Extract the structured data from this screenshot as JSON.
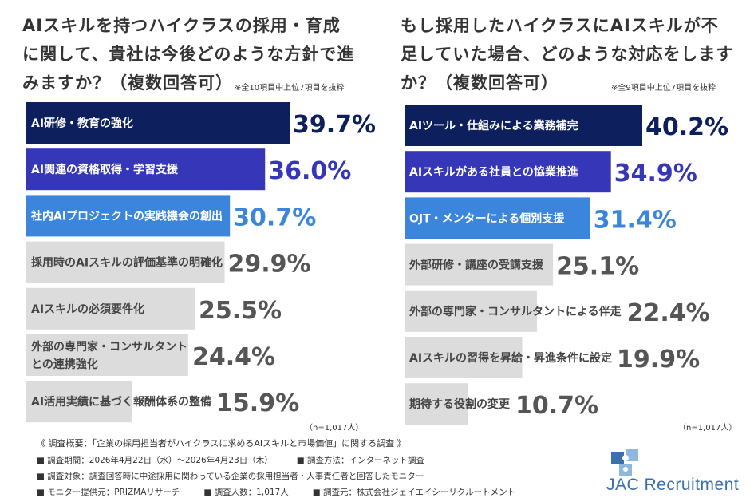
{
  "chart_data": [
    {
      "type": "bar",
      "orientation": "horizontal",
      "title": "AIスキルを持つハイクラスの採用・育成に関して、貴社は今後どのような方針で進みますか？（複数回答可）",
      "note": "※全10項目中上位7項目を抜粋",
      "sample": "（n=1,017人）",
      "unit": "%",
      "categories": [
        "AI研修・教育の強化",
        "AI関連の資格取得・学習支援",
        "社内AIプロジェクトの実践機会の創出",
        "採用時のAIスキルの評価基準の明確化",
        "AIスキルの必須要件化",
        "外部の専門家・コンサルタントとの連携強化",
        "AI活用実績に基づく報酬体系の整備"
      ],
      "values": [
        39.7,
        36.0,
        30.7,
        29.9,
        25.5,
        24.4,
        15.9
      ],
      "value_labels": [
        "39.7%",
        "36.0%",
        "30.7%",
        "29.9%",
        "25.5%",
        "24.4%",
        "15.9%"
      ],
      "colors": [
        "#0d1f5c",
        "#3636b8",
        "#3b86dc",
        "#dcdcdc",
        "#dcdcdc",
        "#dcdcdc",
        "#dcdcdc"
      ]
    },
    {
      "type": "bar",
      "orientation": "horizontal",
      "title": "もし採用したハイクラスにAIスキルが不足していた場合、どのような対応をしますか？（複数回答可）",
      "note": "※全9項目中上位7項目を抜粋",
      "sample": "（n=1,017人）",
      "unit": "%",
      "categories": [
        "AIツール・仕組みによる業務補完",
        "AIスキルがある社員との協業推進",
        "OJT・メンターによる個別支援",
        "外部研修・講座の受講支援",
        "外部の専門家・コンサルタントによる伴走",
        "AIスキルの習得を昇給・昇進条件に設定",
        "期待する役割の変更"
      ],
      "values": [
        40.2,
        34.9,
        31.4,
        25.1,
        22.4,
        19.9,
        10.7
      ],
      "value_labels": [
        "40.2%",
        "34.9%",
        "31.4%",
        "25.1%",
        "22.4%",
        "19.9%",
        "10.7%"
      ],
      "colors": [
        "#0d1f5c",
        "#3636b8",
        "#3b86dc",
        "#dcdcdc",
        "#dcdcdc",
        "#dcdcdc",
        "#dcdcdc"
      ]
    }
  ],
  "footer": {
    "title": "《 調査概要：「企業の採用担当者がハイクラスに求めるAIスキルと市場価値」に関する調査 》",
    "rows": [
      [
        "■ 調査期間：2026年4月22日（水）～2026年4月23日（木）",
        "■ 調査方法：インターネット調査"
      ],
      [
        "■ 調査対象：調査回答時に中途採用に関わっている企業の採用担当者・人事責任者と回答したモニター"
      ],
      [
        "■ モニター提供元：PRIZMAリサーチ",
        "■ 調査人数：1,017人",
        "■ 調査元：株式会社ジェイエイシーリクルートメント"
      ]
    ]
  },
  "logo": {
    "text": "JAC Recruitment",
    "colors": [
      "#3a6fb0",
      "#8fb8e0"
    ]
  }
}
